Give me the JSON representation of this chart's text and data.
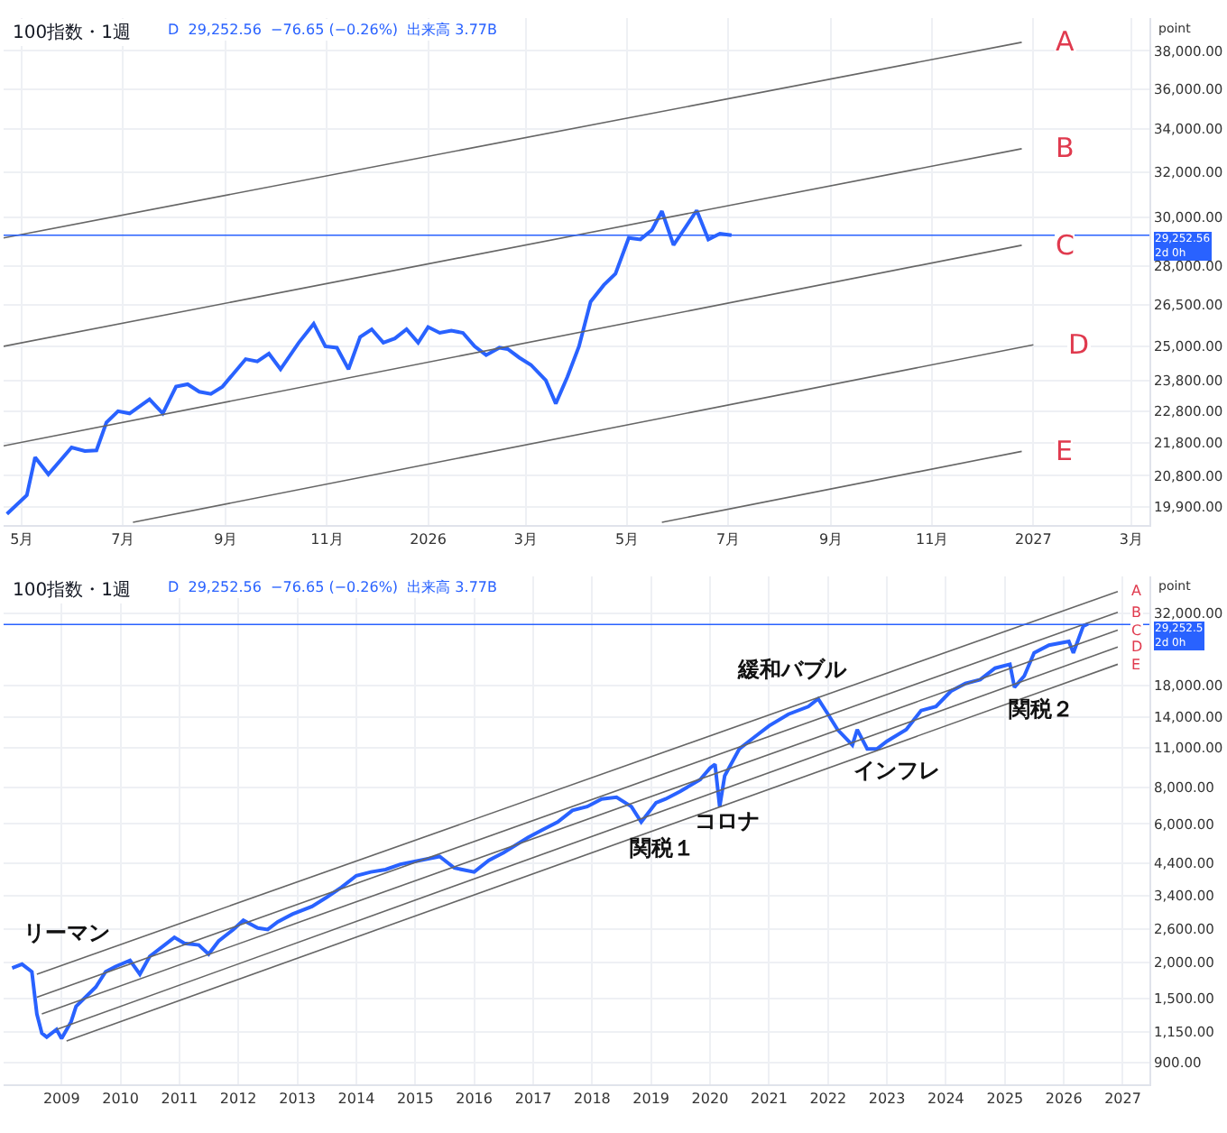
{
  "chart_data": [
    {
      "type": "line",
      "title": "100指数・1週",
      "subtitle": "D  29,252.56  −76.65 (−0.26%)  出来高 3.77B",
      "ylabel": "point",
      "log": true,
      "grid": true,
      "xlim": [
        "2025-04-20",
        "2027-03-12"
      ],
      "xticks": [
        {
          "value": "2025-05-01",
          "label": "5月"
        },
        {
          "value": "2025-07-01",
          "label": "7月"
        },
        {
          "value": "2025-09-01",
          "label": "9月"
        },
        {
          "value": "2025-11-01",
          "label": "11月"
        },
        {
          "value": "2026-01-01",
          "label": "2026"
        },
        {
          "value": "2026-03-01",
          "label": "3月"
        },
        {
          "value": "2026-05-01",
          "label": "5月"
        },
        {
          "value": "2026-07-01",
          "label": "7月"
        },
        {
          "value": "2026-09-01",
          "label": "9月"
        },
        {
          "value": "2026-11-01",
          "label": "11月"
        },
        {
          "value": "2027-01-01",
          "label": "2027"
        },
        {
          "value": "2027-03-01",
          "label": "3月"
        }
      ],
      "ylim": [
        19400,
        39800
      ],
      "yticks": [
        {
          "value": 19900,
          "label": "19,900.00"
        },
        {
          "value": 20800,
          "label": "20,800.00"
        },
        {
          "value": 21800,
          "label": "21,800.00"
        },
        {
          "value": 22800,
          "label": "22,800.00"
        },
        {
          "value": 23800,
          "label": "23,800.00"
        },
        {
          "value": 25000,
          "label": "25,000.00"
        },
        {
          "value": 26500,
          "label": "26,500.00"
        },
        {
          "value": 28000,
          "label": "28,000.00"
        },
        {
          "value": 30000,
          "label": "30,000.00"
        },
        {
          "value": 32000,
          "label": "32,000.00"
        },
        {
          "value": 34000,
          "label": "34,000.00"
        },
        {
          "value": 36000,
          "label": "36,000.00"
        },
        {
          "value": 38000,
          "label": "38,000.00"
        }
      ],
      "series": [
        {
          "color": "#2962ff",
          "x": [
            "2025-04-22",
            "2025-05-04",
            "2025-05-09",
            "2025-05-17",
            "2025-05-31",
            "2025-06-08",
            "2025-06-15",
            "2025-06-21",
            "2025-06-28",
            "2025-07-05",
            "2025-07-17",
            "2025-07-25",
            "2025-08-02",
            "2025-08-09",
            "2025-08-16",
            "2025-08-23",
            "2025-08-30",
            "2025-09-13",
            "2025-09-20",
            "2025-09-27",
            "2025-10-04",
            "2025-10-15",
            "2025-10-24",
            "2025-10-31",
            "2025-11-07",
            "2025-11-14",
            "2025-11-21",
            "2025-11-28",
            "2025-12-05",
            "2025-12-12",
            "2025-12-19",
            "2025-12-26",
            "2026-01-01",
            "2026-01-08",
            "2026-01-15",
            "2026-01-22",
            "2026-01-29",
            "2026-02-05",
            "2026-02-13",
            "2026-02-18",
            "2026-02-25",
            "2026-03-04",
            "2026-03-13",
            "2026-03-19",
            "2026-03-26",
            "2026-04-02",
            "2026-04-09",
            "2026-04-17",
            "2026-04-24",
            "2026-05-02",
            "2026-05-09",
            "2026-05-16",
            "2026-05-22",
            "2026-05-29",
            "2026-06-05",
            "2026-06-12",
            "2026-06-19",
            "2026-06-26",
            "2026-07-03"
          ],
          "values": [
            19700,
            20230,
            21350,
            20840,
            21650,
            21540,
            21560,
            22430,
            22790,
            22720,
            23180,
            22720,
            23600,
            23680,
            23430,
            23360,
            23600,
            24540,
            24460,
            24730,
            24190,
            25120,
            25800,
            24990,
            24940,
            24190,
            25320,
            25600,
            25120,
            25270,
            25600,
            25120,
            25680,
            25470,
            25550,
            25470,
            24990,
            24680,
            24940,
            24890,
            24590,
            24340,
            23810,
            23040,
            23930,
            24990,
            26620,
            27260,
            27700,
            29140,
            29080,
            29470,
            30270,
            28850,
            29560,
            30300,
            29080,
            29320,
            29250
          ]
        },
        {
          "name": "A",
          "color": "#666666",
          "x": [
            "2025-04-20",
            "2026-12-25"
          ],
          "values": [
            29140,
            38460
          ]
        },
        {
          "name": "B",
          "color": "#666666",
          "x": [
            "2025-04-20",
            "2026-12-25"
          ],
          "values": [
            24990,
            33070
          ]
        },
        {
          "name": "C",
          "color": "#666666",
          "x": [
            "2025-04-20",
            "2026-12-25"
          ],
          "values": [
            21700,
            28840
          ]
        },
        {
          "name": "D",
          "color": "#666666",
          "x": [
            "2025-07-07",
            "2027-01-01"
          ],
          "values": [
            19470,
            25040
          ]
        },
        {
          "name": "E",
          "color": "#666666",
          "x": [
            "2026-05-22",
            "2026-12-25"
          ],
          "values": [
            19470,
            21530
          ]
        }
      ],
      "ref_lines": [
        {
          "axis": "y",
          "value": 29252.56,
          "label": "29,252.56\n2d 0h",
          "color": "#2962ff"
        }
      ]
    },
    {
      "type": "line",
      "title": "100指数・1週",
      "subtitle": "D  29,252.56  −76.65 (−0.26%)  出来高 3.77B",
      "ylabel": "point",
      "log": true,
      "grid": true,
      "xlim": [
        "2008-01-08",
        "2027-06-15"
      ],
      "xticks": [
        {
          "value": "2009-01-01",
          "label": "2009"
        },
        {
          "value": "2010-01-01",
          "label": "2010"
        },
        {
          "value": "2011-01-01",
          "label": "2011"
        },
        {
          "value": "2012-01-01",
          "label": "2012"
        },
        {
          "value": "2013-01-01",
          "label": "2013"
        },
        {
          "value": "2014-01-01",
          "label": "2014"
        },
        {
          "value": "2015-01-01",
          "label": "2015"
        },
        {
          "value": "2016-01-01",
          "label": "2016"
        },
        {
          "value": "2017-01-01",
          "label": "2017"
        },
        {
          "value": "2018-01-01",
          "label": "2018"
        },
        {
          "value": "2019-01-01",
          "label": "2019"
        },
        {
          "value": "2020-01-01",
          "label": "2020"
        },
        {
          "value": "2021-01-01",
          "label": "2021"
        },
        {
          "value": "2022-01-01",
          "label": "2022"
        },
        {
          "value": "2023-01-01",
          "label": "2023"
        },
        {
          "value": "2024-01-01",
          "label": "2024"
        },
        {
          "value": "2025-01-01",
          "label": "2025"
        },
        {
          "value": "2026-01-01",
          "label": "2026"
        },
        {
          "value": "2027-01-01",
          "label": "2027"
        }
      ],
      "ylim": [
        760,
        43000
      ],
      "yticks": [
        {
          "value": 900,
          "label": "900.00"
        },
        {
          "value": 1150,
          "label": "1,150.00"
        },
        {
          "value": 1500,
          "label": "1,500.00"
        },
        {
          "value": 2000,
          "label": "2,000.00"
        },
        {
          "value": 2600,
          "label": "2,600.00"
        },
        {
          "value": 3400,
          "label": "3,400.00"
        },
        {
          "value": 4400,
          "label": "4,400.00"
        },
        {
          "value": 6000,
          "label": "6,000.00"
        },
        {
          "value": 8000,
          "label": "8,000.00"
        },
        {
          "value": 11000,
          "label": "11,000.00"
        },
        {
          "value": 14000,
          "label": "14,000.00"
        },
        {
          "value": 18000,
          "label": "18,000.00"
        },
        {
          "value": 32000,
          "label": "32,000.00"
        }
      ],
      "series": [
        {
          "color": "#2962ff",
          "x": [
            "2008-03",
            "2008-05",
            "2008-07",
            "2008-08",
            "2008-09",
            "2008-10",
            "2008-12",
            "2009-01",
            "2009-03",
            "2009-04",
            "2009-08",
            "2009-10",
            "2009-12",
            "2010-03",
            "2010-05",
            "2010-07",
            "2010-10",
            "2010-12",
            "2011-02",
            "2011-05",
            "2011-07",
            "2011-09",
            "2011-12",
            "2012-02",
            "2012-05",
            "2012-07",
            "2012-09",
            "2012-12",
            "2013-04",
            "2013-07",
            "2013-10",
            "2014-01",
            "2014-04",
            "2014-07",
            "2014-10",
            "2015-02",
            "2015-06",
            "2015-09",
            "2016-01",
            "2016-04",
            "2016-07",
            "2016-12",
            "2017-03",
            "2017-06",
            "2017-09",
            "2017-12",
            "2018-03",
            "2018-06",
            "2018-09",
            "2018-11",
            "2019-02",
            "2019-04",
            "2019-07",
            "2019-11",
            "2020-01",
            "2020-02",
            "2020-03",
            "2020-04",
            "2020-07",
            "2020-10",
            "2021-01",
            "2021-05",
            "2021-09",
            "2021-11",
            "2022-01",
            "2022-03",
            "2022-06",
            "2022-07",
            "2022-09",
            "2022-11",
            "2023-01",
            "2023-05",
            "2023-08",
            "2023-11",
            "2024-02",
            "2024-05",
            "2024-08",
            "2024-11",
            "2025-02",
            "2025-03",
            "2025-05",
            "2025-07",
            "2025-10",
            "2026-02",
            "2026-03",
            "2026-05",
            "2026-06"
          ],
          "values": [
            1909,
            1968,
            1852,
            1324,
            1136,
            1102,
            1171,
            1089,
            1245,
            1407,
            1640,
            1852,
            1931,
            2028,
            1817,
            2092,
            2291,
            2435,
            2321,
            2291,
            2129,
            2363,
            2591,
            2787,
            2622,
            2591,
            2754,
            2927,
            3111,
            3347,
            3623,
            3973,
            4094,
            4173,
            4352,
            4489,
            4630,
            4224,
            4094,
            4489,
            4771,
            5391,
            5730,
            6090,
            6678,
            6881,
            7314,
            7410,
            6881,
            6090,
            7098,
            7314,
            7774,
            8525,
            9349,
            9634,
            6881,
            8793,
            10890,
            11940,
            13080,
            14340,
            15240,
            16200,
            14340,
            12690,
            11230,
            12690,
            10890,
            10890,
            11570,
            12690,
            14770,
            15240,
            17220,
            18300,
            18880,
            20680,
            21330,
            17760,
            19450,
            23350,
            24820,
            25600,
            23350,
            28880,
            29420
          ]
        },
        {
          "name": "A",
          "color": "#666666",
          "x": [
            "2008-08",
            "2026-12"
          ],
          "values": [
            1817,
            38040
          ]
        },
        {
          "name": "B",
          "color": "#666666",
          "x": [
            "2008-08",
            "2026-12"
          ],
          "values": [
            1513,
            32240
          ]
        },
        {
          "name": "C",
          "color": "#666666",
          "x": [
            "2008-09",
            "2026-12"
          ],
          "values": [
            1324,
            28000
          ]
        },
        {
          "name": "D",
          "color": "#666666",
          "x": [
            "2008-12",
            "2026-12"
          ],
          "values": [
            1171,
            24470
          ]
        },
        {
          "name": "E",
          "color": "#666666",
          "x": [
            "2009-02",
            "2026-12"
          ],
          "values": [
            1069,
            21330
          ]
        }
      ],
      "ref_lines": [
        {
          "axis": "y",
          "value": 29252.56,
          "label": "29,252.5\n2d 0h",
          "color": "#2962ff"
        }
      ],
      "annotations": [
        "リーマン",
        "関税１",
        "コロナ",
        "緩和バブル",
        "インフレ",
        "関税２"
      ]
    }
  ]
}
